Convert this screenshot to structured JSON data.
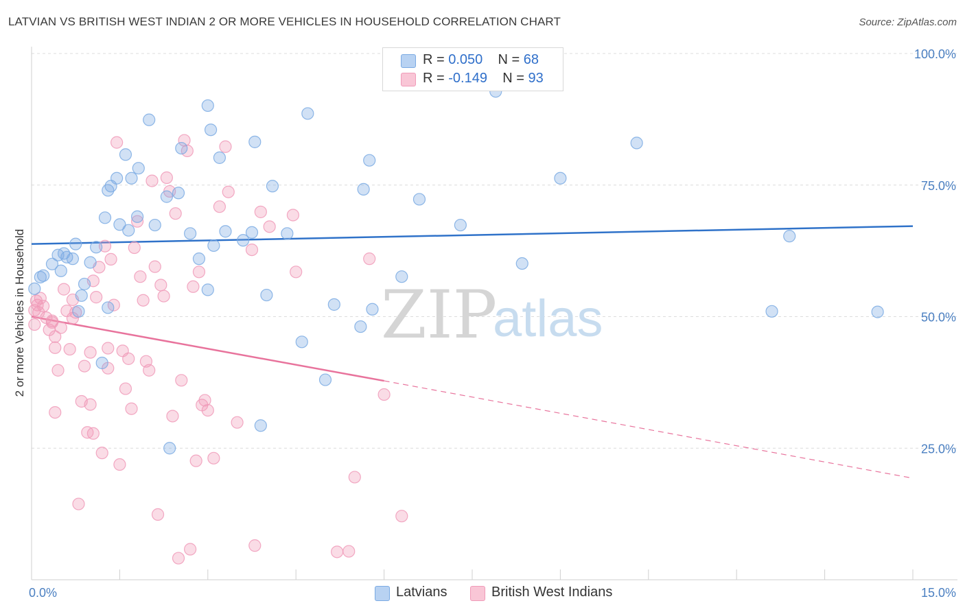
{
  "title": "LATVIAN VS BRITISH WEST INDIAN 2 OR MORE VEHICLES IN HOUSEHOLD CORRELATION CHART",
  "source": "Source: ZipAtlas.com",
  "watermark": {
    "zip": "ZIP",
    "atlas": "atlas"
  },
  "legend": {
    "r_label": "R =",
    "n_label": "N =",
    "series": [
      {
        "r": "0.050",
        "n": "68"
      },
      {
        "r": "-0.149",
        "n": "93"
      }
    ]
  },
  "bottom_legend": [
    "Latvians",
    "British West Indians"
  ],
  "chart_data": {
    "type": "scatter",
    "title": "LATVIAN VS BRITISH WEST INDIAN 2 OR MORE VEHICLES IN HOUSEHOLD CORRELATION CHART",
    "xlabel": "",
    "ylabel": "2 or more Vehicles in Household",
    "xlim": [
      0,
      15
    ],
    "ylim": [
      0,
      105
    ],
    "x_tick_labels": [
      "0.0%",
      "15.0%"
    ],
    "y_tick_values": [
      25,
      50,
      75,
      100
    ],
    "y_tick_labels": [
      "25.0%",
      "50.0%",
      "75.0%",
      "100.0%"
    ],
    "grid": true,
    "legend_position": "top-center",
    "colors": {
      "latvians": "#7aaae3",
      "bwi": "#f09ab8",
      "latvians_line": "#2f72c9",
      "bwi_line": "#e8739c"
    },
    "series": [
      {
        "name": "Latvians",
        "r": 0.05,
        "n": 68,
        "trend": {
          "x0": 0,
          "y0": 63.8,
          "x1": 15,
          "y1": 67.2
        },
        "points": [
          [
            0.05,
            55.3
          ],
          [
            0.15,
            57.5
          ],
          [
            0.2,
            57.8
          ],
          [
            0.35,
            60.0
          ],
          [
            0.45,
            61.7
          ],
          [
            0.5,
            58.7
          ],
          [
            0.55,
            62.0
          ],
          [
            0.6,
            61.3
          ],
          [
            0.7,
            61.0
          ],
          [
            0.75,
            63.8
          ],
          [
            0.8,
            51.0
          ],
          [
            0.85,
            54.0
          ],
          [
            0.9,
            56.2
          ],
          [
            1.0,
            60.3
          ],
          [
            1.1,
            63.2
          ],
          [
            1.2,
            41.2
          ],
          [
            1.25,
            68.8
          ],
          [
            1.3,
            51.7
          ],
          [
            1.3,
            74.0
          ],
          [
            1.35,
            74.8
          ],
          [
            1.45,
            76.3
          ],
          [
            1.5,
            67.5
          ],
          [
            1.6,
            80.8
          ],
          [
            1.65,
            66.4
          ],
          [
            1.7,
            76.3
          ],
          [
            1.8,
            69.0
          ],
          [
            1.82,
            78.2
          ],
          [
            2.0,
            87.4
          ],
          [
            2.1,
            67.4
          ],
          [
            2.3,
            72.8
          ],
          [
            2.35,
            25.0
          ],
          [
            2.5,
            73.5
          ],
          [
            2.55,
            82.0
          ],
          [
            2.7,
            65.8
          ],
          [
            2.85,
            61.0
          ],
          [
            3.0,
            55.1
          ],
          [
            3.0,
            90.1
          ],
          [
            3.05,
            85.5
          ],
          [
            3.1,
            63.5
          ],
          [
            3.2,
            80.2
          ],
          [
            3.3,
            66.2
          ],
          [
            3.6,
            64.5
          ],
          [
            3.75,
            66.0
          ],
          [
            3.8,
            83.2
          ],
          [
            3.9,
            29.3
          ],
          [
            4.0,
            54.1
          ],
          [
            4.1,
            74.8
          ],
          [
            4.35,
            65.8
          ],
          [
            4.6,
            45.2
          ],
          [
            4.7,
            88.6
          ],
          [
            5.0,
            38.0
          ],
          [
            5.15,
            52.3
          ],
          [
            5.6,
            48.1
          ],
          [
            5.65,
            74.2
          ],
          [
            5.75,
            79.7
          ],
          [
            5.8,
            51.4
          ],
          [
            6.3,
            57.6
          ],
          [
            6.6,
            72.3
          ],
          [
            7.3,
            67.4
          ],
          [
            7.9,
            92.8
          ],
          [
            8.35,
            60.1
          ],
          [
            9.0,
            76.3
          ],
          [
            10.3,
            83.0
          ],
          [
            12.6,
            51.0
          ],
          [
            12.9,
            65.3
          ],
          [
            14.4,
            50.9
          ]
        ]
      },
      {
        "name": "British West Indians",
        "r": -0.149,
        "n": 93,
        "trend": {
          "x0": 0,
          "y0": 50.0,
          "x1": 6,
          "y1": 37.8,
          "x_dash_end": 15,
          "y_dash_end": 19.3
        },
        "points": [
          [
            0.05,
            51.2
          ],
          [
            0.05,
            48.5
          ],
          [
            0.08,
            53.0
          ],
          [
            0.1,
            52.2
          ],
          [
            0.12,
            50.8
          ],
          [
            0.15,
            53.5
          ],
          [
            0.2,
            52.0
          ],
          [
            0.25,
            49.8
          ],
          [
            0.3,
            47.5
          ],
          [
            0.35,
            48.9
          ],
          [
            0.35,
            49.2
          ],
          [
            0.4,
            46.2
          ],
          [
            0.4,
            44.1
          ],
          [
            0.4,
            31.8
          ],
          [
            0.45,
            39.8
          ],
          [
            0.5,
            47.9
          ],
          [
            0.55,
            55.2
          ],
          [
            0.6,
            51.1
          ],
          [
            0.65,
            43.8
          ],
          [
            0.7,
            53.2
          ],
          [
            0.7,
            49.7
          ],
          [
            0.75,
            50.8
          ],
          [
            0.8,
            14.4
          ],
          [
            0.85,
            33.9
          ],
          [
            0.9,
            40.6
          ],
          [
            0.95,
            28.0
          ],
          [
            1.0,
            33.3
          ],
          [
            1.0,
            43.2
          ],
          [
            1.05,
            27.8
          ],
          [
            1.05,
            56.8
          ],
          [
            1.1,
            53.7
          ],
          [
            1.15,
            59.4
          ],
          [
            1.2,
            24.1
          ],
          [
            1.25,
            63.4
          ],
          [
            1.3,
            44.0
          ],
          [
            1.3,
            40.2
          ],
          [
            1.35,
            60.9
          ],
          [
            1.4,
            52.2
          ],
          [
            1.45,
            83.1
          ],
          [
            1.5,
            21.9
          ],
          [
            1.55,
            43.5
          ],
          [
            1.6,
            36.3
          ],
          [
            1.65,
            42.0
          ],
          [
            1.7,
            32.5
          ],
          [
            1.75,
            63.1
          ],
          [
            1.8,
            68.1
          ],
          [
            1.85,
            57.6
          ],
          [
            1.9,
            53.1
          ],
          [
            1.95,
            41.5
          ],
          [
            2.0,
            39.8
          ],
          [
            2.05,
            75.8
          ],
          [
            2.1,
            59.5
          ],
          [
            2.15,
            12.4
          ],
          [
            2.2,
            56.0
          ],
          [
            2.25,
            53.9
          ],
          [
            2.3,
            76.4
          ],
          [
            2.35,
            73.8
          ],
          [
            2.4,
            31.1
          ],
          [
            2.45,
            69.6
          ],
          [
            2.5,
            4.1
          ],
          [
            2.55,
            37.9
          ],
          [
            2.6,
            83.5
          ],
          [
            2.65,
            81.5
          ],
          [
            2.7,
            5.8
          ],
          [
            2.75,
            55.7
          ],
          [
            2.8,
            22.6
          ],
          [
            2.85,
            58.5
          ],
          [
            2.9,
            33.2
          ],
          [
            2.95,
            34.1
          ],
          [
            3.0,
            32.2
          ],
          [
            3.1,
            23.1
          ],
          [
            3.2,
            70.9
          ],
          [
            3.3,
            82.3
          ],
          [
            3.35,
            73.7
          ],
          [
            3.5,
            29.9
          ],
          [
            3.75,
            62.7
          ],
          [
            3.8,
            6.5
          ],
          [
            3.9,
            69.9
          ],
          [
            4.05,
            67.1
          ],
          [
            4.45,
            69.3
          ],
          [
            4.5,
            58.5
          ],
          [
            5.2,
            5.3
          ],
          [
            5.4,
            5.4
          ],
          [
            5.5,
            19.5
          ],
          [
            5.75,
            61.0
          ],
          [
            6.0,
            35.2
          ],
          [
            6.3,
            12.1
          ]
        ]
      }
    ]
  }
}
